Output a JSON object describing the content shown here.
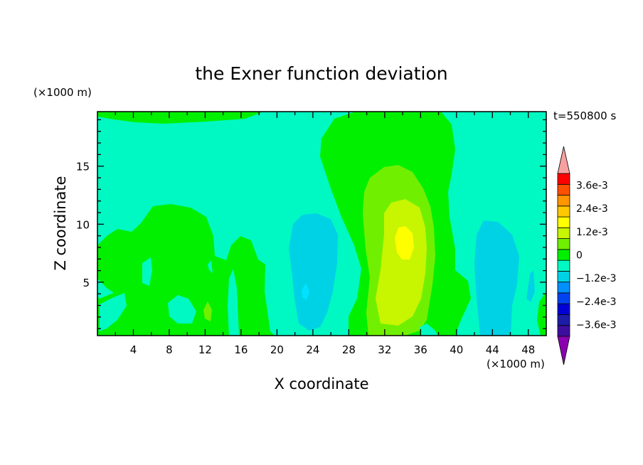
{
  "chart_data": {
    "type": "heatmap",
    "title": "the Exner function deviation",
    "xlabel": "X coordinate",
    "ylabel": "Z coordinate",
    "x_unit": "(×1000 m)",
    "y_unit": "(×1000 m)",
    "time_label": "t=550800 s",
    "xlim": [
      0,
      50
    ],
    "ylim": [
      0.4,
      19.7
    ],
    "x_ticks": [
      "4",
      "8",
      "12",
      "16",
      "20",
      "24",
      "28",
      "32",
      "36",
      "40",
      "44",
      "48"
    ],
    "y_ticks": [
      "5",
      "10",
      "15"
    ],
    "colorbar": {
      "labels": [
        "3.6e-3",
        "2.4e-3",
        "1.2e-3",
        "0",
        "−1.2e-3",
        "−2.4e-3",
        "−3.6e-3"
      ],
      "levels": [
        -0.0042,
        -0.0036,
        -0.003,
        -0.0024,
        -0.0018,
        -0.0012,
        -0.0006,
        0,
        0.0006,
        0.0012,
        0.0018,
        0.0024,
        0.003,
        0.0036,
        0.0042
      ],
      "colors": [
        "#8a00b0",
        "#3d0e9e",
        "#1c1ca8",
        "#0000d6",
        "#0044f0",
        "#0090ff",
        "#00d2e6",
        "#00f9c2",
        "#00f000",
        "#70f000",
        "#c8f500",
        "#ffff00",
        "#ffc800",
        "#ff9600",
        "#ff5000",
        "#ff0000",
        "#f8a0a0"
      ]
    },
    "fields": {
      "background": "#00f9c2",
      "light_green": "#00f000",
      "yellow_green": "#70f000",
      "green_yellow": "#c8f500",
      "yellow": "#ffff00",
      "light_cyan": "#00d2e6",
      "cyan": "#00e2ff"
    }
  }
}
